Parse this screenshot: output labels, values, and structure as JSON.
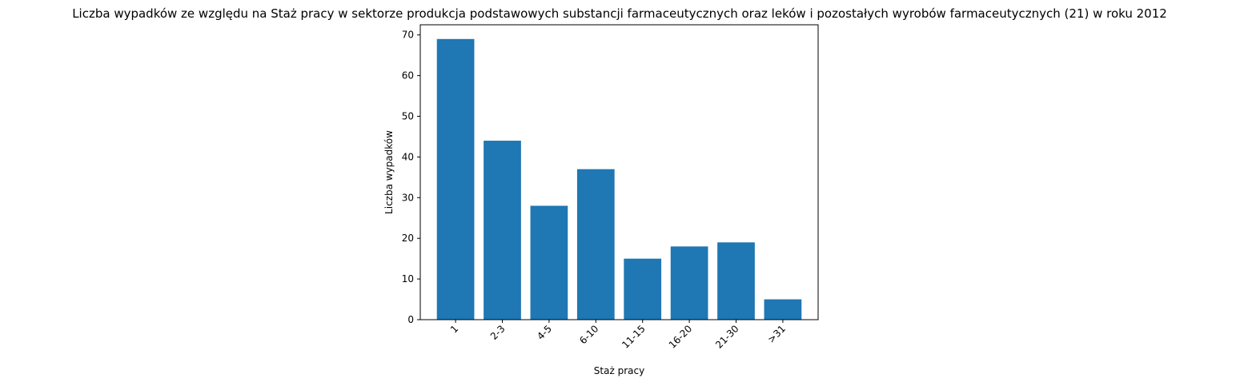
{
  "chart_data": {
    "type": "bar",
    "title": "Liczba wypadków ze względu na Staż pracy w sektorze produkcja podstawowych substancji farmaceutycznych oraz leków i pozostałych wyrobów farmaceutycznych (21)  w roku 2012",
    "xlabel": "Staż pracy",
    "ylabel": "Liczba wypadków",
    "categories": [
      "1",
      "2-3",
      "4-5",
      "6-10",
      "11-15",
      "16-20",
      "21-30",
      ">31"
    ],
    "values": [
      69,
      44,
      28,
      37,
      15,
      18,
      19,
      5
    ],
    "ylim": [
      0,
      72.5
    ],
    "yticks": [
      0,
      10,
      20,
      30,
      40,
      50,
      60,
      70
    ],
    "bar_color": "#1f77b4",
    "grid": false,
    "legend": false
  }
}
